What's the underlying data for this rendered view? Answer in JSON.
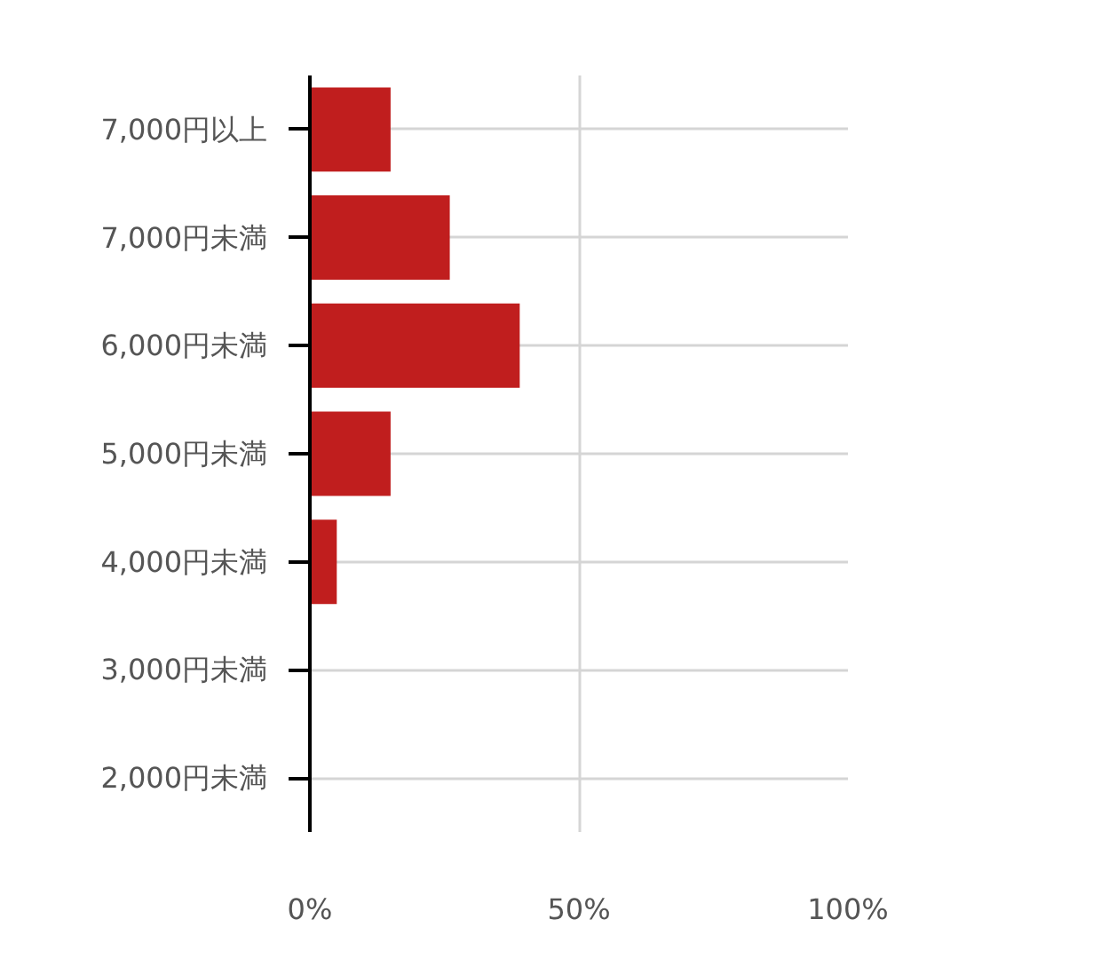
{
  "chart_data": {
    "type": "bar",
    "orientation": "horizontal",
    "categories": [
      "7,000円以上",
      "7,000円未満",
      "6,000円未満",
      "5,000円未満",
      "4,000円未満",
      "3,000円未満",
      "2,000円未満"
    ],
    "values": [
      15,
      26,
      39,
      15,
      5,
      0,
      0
    ],
    "color": "#c01e1e",
    "xlim": [
      0,
      100
    ],
    "xticks": [
      {
        "value": 0,
        "label": "0%"
      },
      {
        "value": 50,
        "label": "50%"
      },
      {
        "value": 100,
        "label": "100%"
      }
    ],
    "grid": true
  }
}
